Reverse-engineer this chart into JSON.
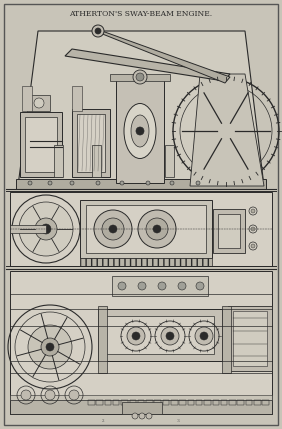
{
  "title": "ATHERTON'S SWAY-BEAM ENGINE.",
  "bg_color": "#c8c4b8",
  "border_color": "#555555",
  "line_color": "#2a2a2a",
  "fig_width": 2.82,
  "fig_height": 4.29,
  "dpi": 100
}
